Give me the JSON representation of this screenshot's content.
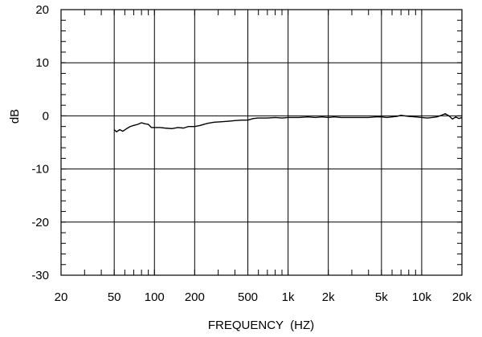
{
  "chart_data": {
    "type": "line",
    "title": "",
    "xlabel": "FREQUENCY  (HZ)",
    "ylabel": "dB",
    "x_scale": "log",
    "xlim": [
      20,
      20000
    ],
    "ylim": [
      -30,
      20
    ],
    "grid": true,
    "x_tick_values": [
      20,
      50,
      100,
      200,
      500,
      1000,
      2000,
      5000,
      10000,
      20000
    ],
    "x_tick_labels": [
      "20",
      "50",
      "100",
      "200",
      "500",
      "1k",
      "2k",
      "5k",
      "10k",
      "20k"
    ],
    "y_tick_values": [
      20,
      10,
      0,
      -10,
      -20,
      -30
    ],
    "y_tick_labels": [
      "20",
      "10",
      "0",
      "-10",
      "-20",
      "-30"
    ],
    "series": [
      {
        "name": "",
        "color": "#000000",
        "x": [
          50,
          52,
          55,
          58,
          62,
          66,
          70,
          75,
          80,
          85,
          90,
          95,
          100,
          110,
          120,
          135,
          150,
          165,
          180,
          200,
          220,
          250,
          280,
          320,
          360,
          400,
          450,
          500,
          550,
          600,
          700,
          800,
          900,
          1000,
          1200,
          1400,
          1600,
          1800,
          2000,
          2200,
          2500,
          2800,
          3200,
          3600,
          4000,
          4500,
          5000,
          5500,
          6000,
          6500,
          7000,
          7500,
          8000,
          9000,
          10000,
          11000,
          12000,
          13000,
          14000,
          15000,
          16000,
          17000,
          18000,
          19000,
          20000
        ],
        "y": [
          -2.6,
          -3.0,
          -2.6,
          -2.9,
          -2.4,
          -2.0,
          -1.8,
          -1.6,
          -1.3,
          -1.5,
          -1.6,
          -2.2,
          -2.2,
          -2.2,
          -2.3,
          -2.4,
          -2.2,
          -2.3,
          -2.0,
          -2.0,
          -1.8,
          -1.4,
          -1.2,
          -1.1,
          -1.0,
          -0.9,
          -0.8,
          -0.8,
          -0.5,
          -0.4,
          -0.4,
          -0.3,
          -0.4,
          -0.3,
          -0.3,
          -0.2,
          -0.3,
          -0.2,
          -0.3,
          -0.2,
          -0.3,
          -0.3,
          -0.3,
          -0.3,
          -0.3,
          -0.2,
          -0.2,
          -0.3,
          -0.2,
          -0.1,
          0.1,
          0.0,
          -0.1,
          -0.2,
          -0.3,
          -0.4,
          -0.3,
          -0.2,
          0.1,
          0.4,
          0.0,
          -0.6,
          -0.2,
          -0.5,
          -0.3
        ]
      }
    ]
  }
}
